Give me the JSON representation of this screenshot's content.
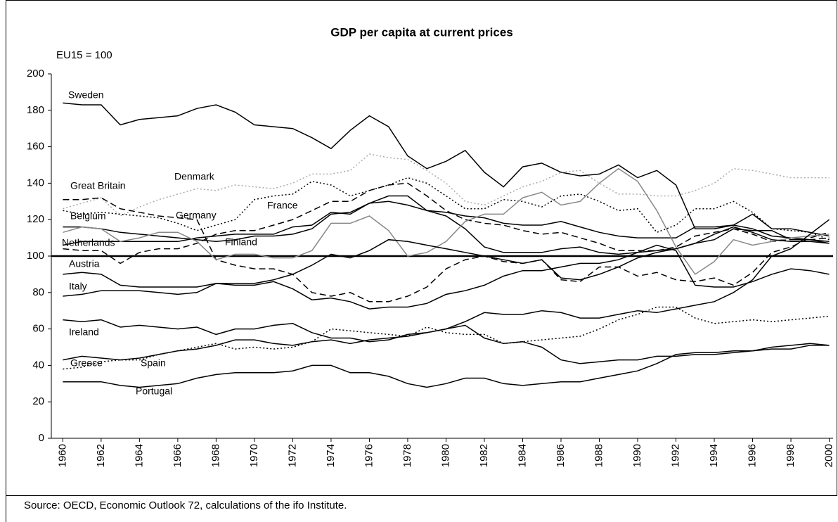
{
  "chart_data": {
    "type": "line",
    "title": "GDP per capita at current prices",
    "subtitle": "EU15 = 100",
    "source": "Source: OECD, Economic Outlook 72, calculations of the ifo Institute.",
    "x": [
      1960,
      1961,
      1962,
      1963,
      1964,
      1965,
      1966,
      1967,
      1968,
      1969,
      1970,
      1971,
      1972,
      1973,
      1974,
      1975,
      1976,
      1977,
      1978,
      1979,
      1980,
      1981,
      1982,
      1983,
      1984,
      1985,
      1986,
      1987,
      1988,
      1989,
      1990,
      1991,
      1992,
      1993,
      1994,
      1995,
      1996,
      1997,
      1998,
      1999,
      2000
    ],
    "xlim": [
      1959.4,
      2000.2
    ],
    "xticks": [
      1960,
      1962,
      1964,
      1966,
      1968,
      1970,
      1972,
      1974,
      1976,
      1978,
      1980,
      1982,
      1984,
      1986,
      1988,
      1990,
      1992,
      1994,
      1996,
      1998,
      2000
    ],
    "ylim": [
      0,
      200
    ],
    "yticks": [
      0,
      20,
      40,
      60,
      80,
      100,
      120,
      140,
      160,
      180,
      200
    ],
    "reference_line": 100,
    "series": [
      {
        "name": "Sweden",
        "color": "#000000",
        "dash": "solid",
        "values": [
          184,
          183,
          183,
          172,
          175,
          176,
          177,
          181,
          183,
          179,
          172,
          171,
          170,
          165,
          159,
          169,
          177,
          171,
          155,
          148,
          152,
          158,
          146,
          138,
          149,
          151,
          146,
          144,
          145,
          150,
          143,
          147,
          139,
          115,
          115,
          117,
          123,
          115,
          115,
          113,
          111
        ]
      },
      {
        "name": "Denmark",
        "color": "#aaaaaa",
        "dash": "dotted",
        "values": [
          126,
          129,
          132,
          122,
          127,
          131,
          134,
          137,
          136,
          139,
          138,
          137,
          140,
          145,
          145,
          147,
          156,
          154,
          153,
          147,
          140,
          130,
          128,
          133,
          138,
          141,
          146,
          147,
          140,
          134,
          134,
          133,
          133,
          136,
          140,
          148,
          147,
          145,
          143,
          143,
          143
        ]
      },
      {
        "name": "Great Britain",
        "color": "#000000",
        "dash": "dashed",
        "values": [
          131,
          131,
          132,
          126,
          124,
          122,
          121,
          120,
          98,
          95,
          93,
          93,
          90,
          80,
          78,
          80,
          75,
          75,
          78,
          83,
          93,
          98,
          100,
          97,
          96,
          98,
          87,
          86,
          94,
          94,
          89,
          91,
          87,
          86,
          88,
          84,
          91,
          102,
          105,
          110,
          113
        ]
      },
      {
        "name": "Belgium",
        "color": "#000000",
        "dash": "solid",
        "values": [
          116,
          116,
          115,
          113,
          112,
          111,
          110,
          109,
          108,
          109,
          111,
          111,
          112,
          115,
          123,
          124,
          129,
          130,
          128,
          125,
          122,
          115,
          105,
          102,
          102,
          102,
          104,
          105,
          102,
          101,
          102,
          103,
          104,
          107,
          109,
          115,
          114,
          114,
          109,
          109,
          107
        ]
      },
      {
        "name": "Germany",
        "color": "#000000",
        "dash": "dotted",
        "values": [
          125,
          123,
          124,
          123,
          122,
          121,
          118,
          114,
          117,
          120,
          131,
          133,
          134,
          141,
          139,
          133,
          136,
          139,
          143,
          140,
          133,
          126,
          126,
          131,
          130,
          127,
          133,
          134,
          130,
          125,
          126,
          113,
          117,
          126,
          126,
          130,
          124,
          115,
          114,
          113,
          109
        ]
      },
      {
        "name": "France",
        "color": "#000000",
        "dash": "solid",
        "values": [
          106,
          108,
          108,
          108,
          108,
          108,
          108,
          110,
          111,
          112,
          112,
          112,
          116,
          117,
          124,
          123,
          129,
          133,
          133,
          125,
          124,
          122,
          121,
          118,
          117,
          117,
          119,
          116,
          113,
          111,
          110,
          110,
          110,
          116,
          116,
          117,
          115,
          111,
          110,
          109,
          108
        ]
      },
      {
        "name": "Netherlands",
        "color": "#000000",
        "dash": "dashed",
        "values": [
          104,
          103,
          103,
          96,
          102,
          104,
          104,
          107,
          112,
          114,
          114,
          117,
          120,
          125,
          130,
          130,
          136,
          139,
          140,
          133,
          125,
          120,
          118,
          117,
          114,
          112,
          113,
          110,
          107,
          103,
          103,
          103,
          105,
          111,
          113,
          115,
          112,
          108,
          109,
          109,
          110
        ]
      },
      {
        "name": "Finland",
        "color": "#888888",
        "dash": "solid",
        "values": [
          113,
          116,
          115,
          108,
          110,
          113,
          113,
          108,
          98,
          101,
          101,
          99,
          99,
          103,
          118,
          118,
          122,
          114,
          100,
          102,
          108,
          119,
          123,
          123,
          132,
          135,
          128,
          130,
          140,
          148,
          141,
          125,
          105,
          90,
          97,
          109,
          106,
          108,
          110,
          111,
          112
        ]
      },
      {
        "name": "Austria",
        "color": "#000000",
        "dash": "solid",
        "values": [
          90,
          91,
          90,
          84,
          83,
          83,
          83,
          83,
          85,
          85,
          85,
          87,
          90,
          95,
          101,
          99,
          103,
          109,
          108,
          106,
          104,
          102,
          100,
          98,
          96,
          98,
          88,
          87,
          90,
          94,
          99,
          102,
          104,
          107,
          112,
          116,
          113,
          109,
          108,
          108,
          107
        ]
      },
      {
        "name": "Italy",
        "color": "#000000",
        "dash": "solid",
        "values": [
          78,
          79,
          81,
          81,
          81,
          80,
          79,
          80,
          85,
          84,
          84,
          86,
          82,
          76,
          77,
          75,
          71,
          72,
          72,
          74,
          79,
          81,
          84,
          89,
          92,
          92,
          94,
          96,
          96,
          98,
          102,
          106,
          103,
          84,
          83,
          83,
          86,
          90,
          93,
          92,
          90
        ]
      },
      {
        "name": "Ireland",
        "color": "#000000",
        "dash": "solid",
        "values": [
          65,
          64,
          65,
          61,
          62,
          61,
          60,
          61,
          57,
          60,
          60,
          62,
          63,
          58,
          55,
          55,
          53,
          54,
          57,
          58,
          60,
          64,
          69,
          68,
          68,
          70,
          69,
          66,
          66,
          68,
          70,
          69,
          71,
          73,
          75,
          80,
          87,
          100,
          104,
          112,
          120
        ]
      },
      {
        "name": "Greece",
        "color": "#000000",
        "dash": "solid",
        "values": [
          43,
          45,
          44,
          43,
          44,
          46,
          48,
          49,
          51,
          54,
          54,
          52,
          51,
          53,
          54,
          52,
          54,
          55,
          56,
          58,
          60,
          62,
          55,
          52,
          53,
          50,
          43,
          41,
          42,
          43,
          43,
          45,
          45,
          46,
          46,
          47,
          48,
          50,
          51,
          52,
          51
        ]
      },
      {
        "name": "Spain",
        "color": "#000000",
        "dash": "dotted",
        "values": [
          38,
          39,
          42,
          43,
          43,
          46,
          48,
          50,
          52,
          49,
          50,
          49,
          50,
          53,
          60,
          59,
          58,
          57,
          56,
          61,
          58,
          57,
          57,
          52,
          53,
          54,
          55,
          56,
          60,
          65,
          68,
          72,
          72,
          66,
          63,
          64,
          65,
          64,
          65,
          66,
          67
        ]
      },
      {
        "name": "Portugal",
        "color": "#000000",
        "dash": "solid",
        "values": [
          31,
          31,
          31,
          29,
          28,
          29,
          30,
          33,
          35,
          36,
          36,
          36,
          37,
          40,
          40,
          36,
          36,
          34,
          30,
          28,
          30,
          33,
          33,
          30,
          29,
          30,
          31,
          31,
          33,
          35,
          37,
          41,
          46,
          47,
          47,
          48,
          48,
          49,
          49,
          51,
          51
        ]
      }
    ]
  }
}
